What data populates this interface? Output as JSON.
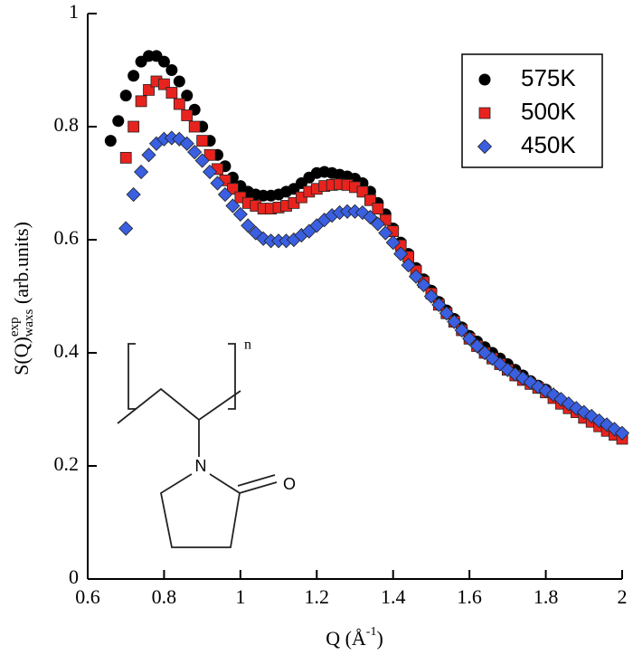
{
  "chart_data": {
    "type": "scatter",
    "xlabel": {
      "main": "Q (Å",
      "sup": "-1",
      "rest": ")"
    },
    "ylabel": {
      "main": "S(Q)",
      "sup": "exp",
      "sub": "waxs",
      "rest": " (arb.units)"
    },
    "xlim": [
      0.6,
      2
    ],
    "ylim": [
      0,
      1
    ],
    "xticks": [
      0.6,
      0.8,
      1,
      1.2,
      1.4,
      1.6,
      1.8,
      2
    ],
    "yticks": [
      0,
      0.2,
      0.4,
      0.6,
      0.8,
      1
    ],
    "legend": "upper right",
    "annotations": {
      "repeat": "n",
      "nitrogen": "N",
      "oxygen": "O"
    },
    "x": [
      0.66,
      0.68,
      0.7,
      0.72,
      0.74,
      0.76,
      0.78,
      0.8,
      0.82,
      0.84,
      0.86,
      0.88,
      0.9,
      0.92,
      0.94,
      0.96,
      0.98,
      1.0,
      1.02,
      1.04,
      1.06,
      1.08,
      1.1,
      1.12,
      1.14,
      1.16,
      1.18,
      1.2,
      1.22,
      1.24,
      1.26,
      1.28,
      1.3,
      1.32,
      1.34,
      1.36,
      1.38,
      1.4,
      1.42,
      1.44,
      1.46,
      1.48,
      1.5,
      1.52,
      1.54,
      1.56,
      1.58,
      1.6,
      1.62,
      1.64,
      1.66,
      1.68,
      1.7,
      1.72,
      1.74,
      1.76,
      1.78,
      1.8,
      1.82,
      1.84,
      1.86,
      1.88,
      1.9,
      1.92,
      1.94,
      1.96,
      1.98,
      2.0
    ],
    "series": [
      {
        "name": "575K",
        "color": "#000000",
        "marker": "circle",
        "values": [
          0.775,
          0.81,
          0.855,
          0.89,
          0.915,
          0.925,
          0.925,
          0.915,
          0.9,
          0.88,
          0.855,
          0.83,
          0.8,
          0.775,
          0.75,
          0.73,
          0.71,
          0.695,
          0.685,
          0.68,
          0.678,
          0.678,
          0.68,
          0.685,
          0.69,
          0.7,
          0.71,
          0.718,
          0.72,
          0.718,
          0.715,
          0.712,
          0.708,
          0.7,
          0.685,
          0.665,
          0.645,
          0.62,
          0.595,
          0.575,
          0.55,
          0.53,
          0.51,
          0.49,
          0.475,
          0.46,
          0.445,
          0.43,
          0.42,
          0.41,
          0.4,
          0.39,
          0.38,
          0.37,
          0.36,
          0.35,
          0.342,
          0.335,
          0.325,
          0.315,
          0.305,
          0.298,
          0.29,
          0.28,
          0.272,
          0.265,
          0.258,
          0.25
        ]
      },
      {
        "name": "500K",
        "color": "#e8231e",
        "marker": "square",
        "values": [
          null,
          null,
          0.745,
          0.8,
          0.845,
          0.865,
          0.88,
          0.875,
          0.86,
          0.84,
          0.82,
          0.8,
          0.775,
          0.75,
          0.725,
          0.705,
          0.69,
          0.675,
          0.665,
          0.66,
          0.655,
          0.655,
          0.657,
          0.66,
          0.665,
          0.675,
          0.685,
          0.69,
          0.695,
          0.697,
          0.698,
          0.697,
          0.693,
          0.685,
          0.67,
          0.655,
          0.635,
          0.615,
          0.59,
          0.57,
          0.545,
          0.525,
          0.505,
          0.485,
          0.47,
          0.455,
          0.44,
          0.425,
          0.412,
          0.4,
          0.39,
          0.38,
          0.37,
          0.36,
          0.352,
          0.345,
          0.338,
          0.33,
          0.32,
          0.31,
          0.302,
          0.295,
          0.285,
          0.278,
          0.27,
          0.262,
          0.255,
          0.248
        ]
      },
      {
        "name": "450K",
        "color": "#3a5fe0",
        "marker": "diamond",
        "values": [
          null,
          null,
          0.62,
          0.68,
          0.72,
          0.75,
          0.77,
          0.778,
          0.78,
          0.778,
          0.77,
          0.755,
          0.74,
          0.72,
          0.7,
          0.68,
          0.66,
          0.645,
          0.625,
          0.612,
          0.602,
          0.598,
          0.598,
          0.598,
          0.6,
          0.608,
          0.615,
          0.625,
          0.635,
          0.643,
          0.648,
          0.65,
          0.65,
          0.648,
          0.64,
          0.628,
          0.612,
          0.595,
          0.575,
          0.555,
          0.535,
          0.52,
          0.5,
          0.485,
          0.47,
          0.455,
          0.44,
          0.425,
          0.412,
          0.4,
          0.39,
          0.38,
          0.37,
          0.362,
          0.355,
          0.348,
          0.34,
          0.333,
          0.326,
          0.318,
          0.31,
          0.302,
          0.295,
          0.288,
          0.28,
          0.273,
          0.265,
          0.258
        ]
      }
    ]
  }
}
